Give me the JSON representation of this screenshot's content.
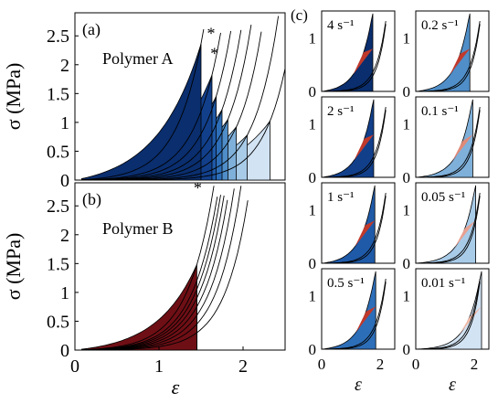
{
  "chart_data": [
    {
      "type": "area",
      "panel": "(a)",
      "title": "Polymer A",
      "xlabel": "ε",
      "ylabel": "σ (MPa)",
      "xlim": [
        0,
        2.5
      ],
      "ylim": [
        0,
        2.9
      ],
      "xticks": [],
      "yticks": [
        "0",
        "0.5",
        "1",
        "1.5",
        "2",
        "2.5"
      ],
      "markers": [
        {
          "label": "*",
          "x": 1.62,
          "y": 2.45
        },
        {
          "label": "*",
          "x": 1.66,
          "y": 2.1
        }
      ],
      "series": [
        {
          "x_end": 1.5,
          "y_end": 2.36,
          "fill": "#0a2e6e"
        },
        {
          "x_end": 1.63,
          "y_end": 1.82,
          "fill": "#123f8a"
        },
        {
          "x_end": 1.68,
          "y_end": 1.45,
          "fill": "#1f5aa8"
        },
        {
          "x_end": 1.75,
          "y_end": 1.22,
          "fill": "#2d6eb8"
        },
        {
          "x_end": 1.82,
          "y_end": 1.05,
          "fill": "#4f8ec8"
        },
        {
          "x_end": 1.92,
          "y_end": 0.92,
          "fill": "#7fb0da"
        },
        {
          "x_end": 2.05,
          "y_end": 0.78,
          "fill": "#a8cbe8"
        },
        {
          "x_end": 2.32,
          "y_end": 1.02,
          "fill": "#d2e3f3"
        }
      ]
    },
    {
      "type": "area",
      "panel": "(b)",
      "title": "Polymer B",
      "xlabel": "ε",
      "ylabel": "σ (MPa)",
      "xlim": [
        0,
        2.5
      ],
      "ylim": [
        0,
        2.9
      ],
      "xticks": [
        "0",
        "1",
        "2"
      ],
      "yticks": [
        "0",
        "0.5",
        "1",
        "1.5",
        "2",
        "2.5"
      ],
      "markers": [
        {
          "label": "*",
          "x": 1.46,
          "y": 2.72
        }
      ],
      "series": [
        {
          "x_end": 1.45,
          "y_end": 1.48,
          "fill": "#6e0f15"
        },
        {
          "x_end": 1.45,
          "y_end": 1.2,
          "fill": "#861b20"
        },
        {
          "x_end": 1.45,
          "y_end": 1.05,
          "fill": "#a12a2c"
        },
        {
          "x_end": 1.45,
          "y_end": 0.9,
          "fill": "#b73f3d"
        },
        {
          "x_end": 1.45,
          "y_end": 0.75,
          "fill": "#cc5f55"
        },
        {
          "x_end": 1.45,
          "y_end": 0.6,
          "fill": "#dd8476"
        },
        {
          "x_end": 1.45,
          "y_end": 0.45,
          "fill": "#eaa594"
        },
        {
          "x_end": 1.45,
          "y_end": 0.3,
          "fill": "#f5c6b4"
        }
      ]
    },
    {
      "type": "area",
      "panel": "(c)",
      "xlabel": "ε",
      "xlim": [
        0,
        2.5
      ],
      "ylim": [
        0,
        1.5
      ],
      "xticks": [
        "0",
        "2"
      ],
      "yticks": [
        "0",
        "1"
      ],
      "subplots": [
        {
          "label": "4 s⁻¹",
          "fill": "#0a2e6e",
          "x_end": 1.75,
          "red_fill": "#c0392b"
        },
        {
          "label": "0.2 s⁻¹",
          "fill": "#4f8ec8",
          "x_end": 1.85,
          "red_fill": "#c0392b"
        },
        {
          "label": "2 s⁻¹",
          "fill": "#123f8a",
          "x_end": 1.78,
          "red_fill": "#c0392b"
        },
        {
          "label": "0.1 s⁻¹",
          "fill": "#7fb0da",
          "x_end": 1.95,
          "red_fill": "#e08a78"
        },
        {
          "label": "1 s⁻¹",
          "fill": "#1f5aa8",
          "x_end": 1.82,
          "red_fill": "#c0392b"
        },
        {
          "label": "0.05 s⁻¹",
          "fill": "#a8cbe8",
          "x_end": 2.05,
          "red_fill": "#e8a090"
        },
        {
          "label": "0.5 s⁻¹",
          "fill": "#2d6eb8",
          "x_end": 1.85,
          "red_fill": "#c0392b"
        },
        {
          "label": "0.01 s⁻¹",
          "fill": "#d2e3f3",
          "x_end": 2.25,
          "red_fill": "#f0b8a4"
        }
      ]
    }
  ]
}
